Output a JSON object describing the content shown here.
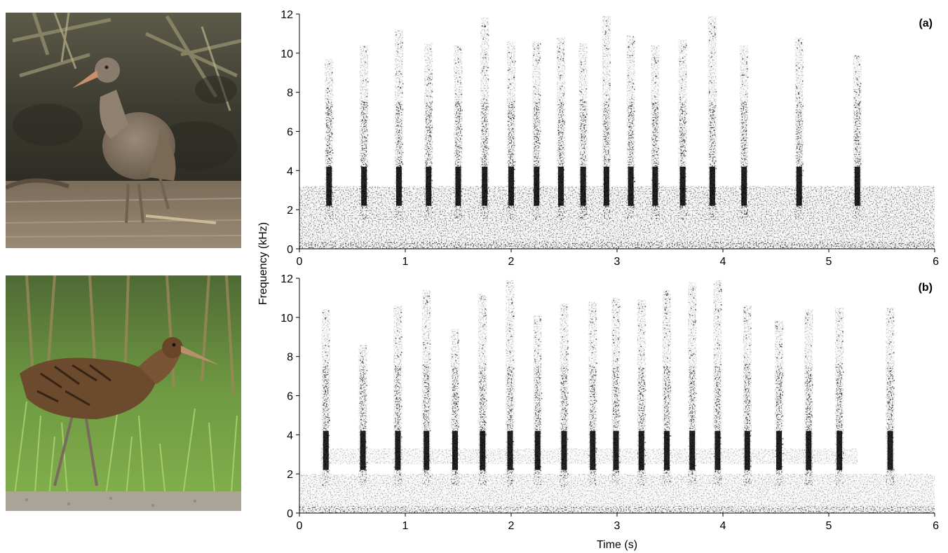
{
  "photos": [
    {
      "subject": "rail-bird-standing-in-shallow-water",
      "colors": {
        "bg": "#4a4a3e",
        "water": "#8a7a66",
        "bird": "#847564"
      }
    },
    {
      "subject": "rail-bird-walking-in-green-grass",
      "colors": {
        "bg": "#5f8a3c",
        "grass": "#7fb04c",
        "bird": "#6b4a2e"
      }
    }
  ],
  "chart_data": [
    {
      "type": "heatmap",
      "panel_label": "(a)",
      "xlabel": "",
      "ylabel": "Frequency (kHz)",
      "xlim": [
        0,
        6
      ],
      "ylim": [
        0,
        12
      ],
      "x_ticks": [
        "0",
        "1",
        "2",
        "3",
        "4",
        "5",
        "6"
      ],
      "y_ticks": [
        "0",
        "2",
        "4",
        "6",
        "8",
        "10",
        "12"
      ],
      "pulse_times": [
        0.28,
        0.61,
        0.94,
        1.22,
        1.5,
        1.75,
        2.0,
        2.24,
        2.47,
        2.68,
        2.9,
        3.13,
        3.36,
        3.62,
        3.9,
        4.2,
        4.72,
        5.27
      ],
      "pulse_top_khz": [
        9.7,
        10.4,
        11.2,
        10.5,
        10.4,
        11.8,
        10.6,
        10.6,
        10.8,
        10.5,
        11.9,
        10.9,
        10.4,
        10.7,
        11.9,
        10.4,
        10.8,
        9.9
      ],
      "pulse_bottom_khz": 1.5,
      "noise_band_khz": [
        0,
        3.2
      ],
      "ink_color": "#000000"
    },
    {
      "type": "heatmap",
      "panel_label": "(b)",
      "xlabel": "Time (s)",
      "ylabel": "",
      "xlim": [
        0,
        6
      ],
      "ylim": [
        0,
        12
      ],
      "x_ticks": [
        "0",
        "1",
        "2",
        "3",
        "4",
        "5",
        "6"
      ],
      "y_ticks": [
        "0",
        "2",
        "4",
        "6",
        "8",
        "10",
        "12"
      ],
      "pulse_times": [
        0.25,
        0.6,
        0.93,
        1.2,
        1.47,
        1.73,
        1.99,
        2.25,
        2.5,
        2.77,
        2.99,
        3.23,
        3.47,
        3.71,
        3.95,
        4.23,
        4.53,
        4.81,
        5.1,
        5.58
      ],
      "pulse_top_khz": [
        10.4,
        8.6,
        10.6,
        11.4,
        9.4,
        11.2,
        11.9,
        10.1,
        10.7,
        10.8,
        11.0,
        10.9,
        11.4,
        11.8,
        11.9,
        10.6,
        9.8,
        10.4,
        10.5,
        10.5
      ],
      "pulse_bottom_khz": 1.4,
      "noise_band_khz": [
        0,
        2.0
      ],
      "harmonic_band_khz": 2.9,
      "ink_color": "#000000"
    }
  ]
}
